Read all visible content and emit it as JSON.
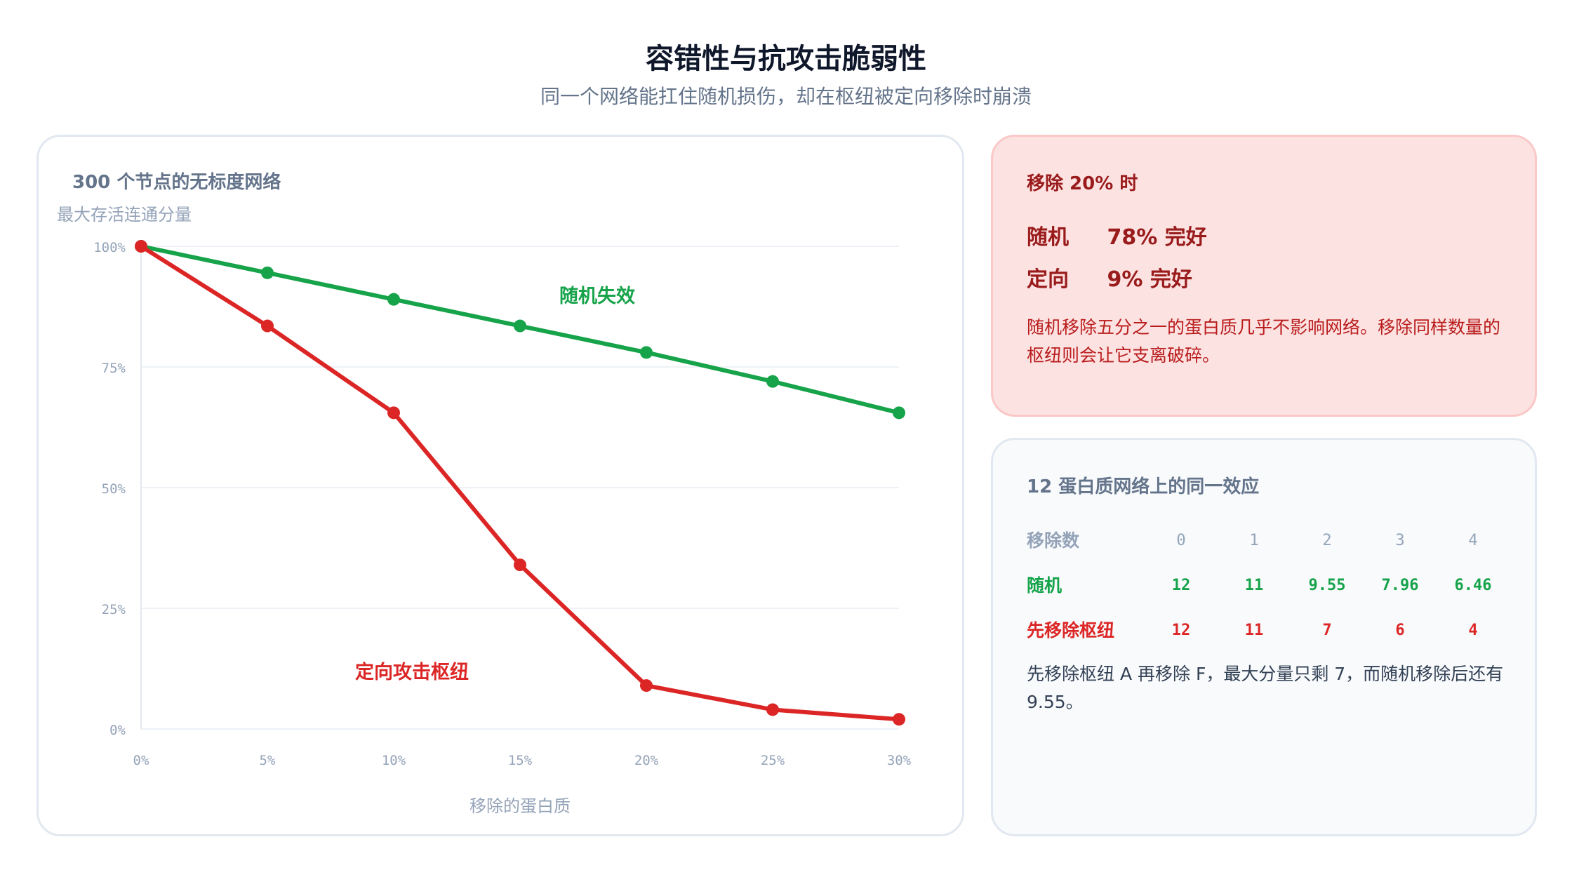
{
  "header": {
    "title": "容错性与抗攻击脆弱性",
    "subtitle": "同一个网络能扛住随机损伤，却在枢纽被定向移除时崩溃"
  },
  "chart_panel": {
    "heading": "300 个节点的无标度网络"
  },
  "chart_data": {
    "type": "line",
    "ylabel": "最大存活连通分量",
    "xlabel": "移除的蛋白质",
    "x": [
      "0%",
      "5%",
      "10%",
      "15%",
      "20%",
      "25%",
      "30%"
    ],
    "y_ticks": [
      "0%",
      "25%",
      "50%",
      "75%",
      "100%"
    ],
    "ylim": [
      0,
      100
    ],
    "grid": true,
    "series": [
      {
        "name": "随机失效",
        "color": "#16a34a",
        "values": [
          100,
          94.5,
          89,
          83.5,
          78,
          72,
          65.5
        ]
      },
      {
        "name": "定向攻击枢纽",
        "color": "#dc2626",
        "values": [
          100,
          83.5,
          65.5,
          34,
          9,
          4,
          2
        ]
      }
    ]
  },
  "alert": {
    "heading": "移除 20% 时",
    "random_label": "随机",
    "random_value": "78% 完好",
    "targeted_label": "定向",
    "targeted_value": "9% 完好",
    "body": "随机移除五分之一的蛋白质几乎不影响网络。移除同样数量的枢纽则会让它支离破碎。"
  },
  "table": {
    "heading": "12 蛋白质网络上的同一效应",
    "header_label": "移除数",
    "columns": [
      "0",
      "1",
      "2",
      "3",
      "4"
    ],
    "random_label": "随机",
    "random_values": [
      "12",
      "11",
      "9.55",
      "7.96",
      "6.46"
    ],
    "hub_label": "先移除枢纽",
    "hub_values": [
      "12",
      "11",
      "7",
      "6",
      "4"
    ],
    "note": "先移除枢纽 A 再移除 F，最大分量只剩 7，而随机移除后还有 9.55。"
  }
}
